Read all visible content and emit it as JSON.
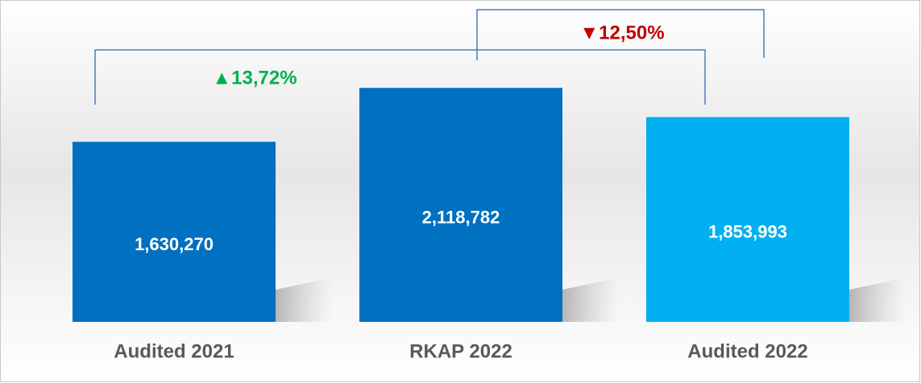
{
  "chart_data": {
    "type": "bar",
    "categories": [
      "Audited 2021",
      "RKAP 2022",
      "Audited 2022"
    ],
    "values": [
      1630270,
      2118782,
      1853993
    ],
    "value_labels": [
      "1,630,270",
      "2,118,782",
      "1,853,993"
    ],
    "colors": [
      "#0070c0",
      "#0070c0",
      "#00b0f0"
    ],
    "ylim": [
      0,
      2900000
    ],
    "annotations": [
      {
        "text": "▲13,72%",
        "color": "#00b050"
      },
      {
        "text": "▼12,50%",
        "color": "#c00000"
      }
    ]
  }
}
